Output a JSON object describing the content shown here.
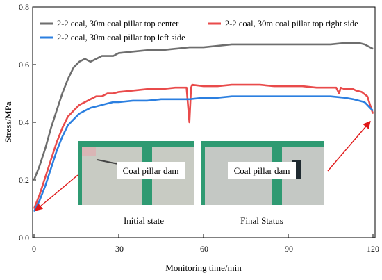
{
  "chart_data": {
    "type": "line",
    "xlabel": "Monitoring time/min",
    "ylabel": "Stress/MPa",
    "xlim": [
      0,
      120
    ],
    "ylim": [
      0.0,
      0.8
    ],
    "xticks": [
      "0",
      "30",
      "60",
      "90",
      "120"
    ],
    "yticks": [
      "0.0",
      "0.2",
      "0.4",
      "0.6",
      "0.8"
    ],
    "legend_position": "top",
    "series": [
      {
        "name": "2-2 coal, 30m coal pillar top center",
        "color": "#6e6e6e",
        "points": [
          [
            0,
            0.2
          ],
          [
            2,
            0.25
          ],
          [
            4,
            0.31
          ],
          [
            6,
            0.38
          ],
          [
            8,
            0.44
          ],
          [
            10,
            0.5
          ],
          [
            12,
            0.55
          ],
          [
            14,
            0.59
          ],
          [
            16,
            0.61
          ],
          [
            18,
            0.62
          ],
          [
            20,
            0.61
          ],
          [
            22,
            0.62
          ],
          [
            24,
            0.63
          ],
          [
            26,
            0.63
          ],
          [
            28,
            0.63
          ],
          [
            30,
            0.64
          ],
          [
            35,
            0.645
          ],
          [
            40,
            0.65
          ],
          [
            45,
            0.65
          ],
          [
            50,
            0.655
          ],
          [
            55,
            0.66
          ],
          [
            60,
            0.66
          ],
          [
            65,
            0.665
          ],
          [
            70,
            0.67
          ],
          [
            75,
            0.67
          ],
          [
            80,
            0.67
          ],
          [
            85,
            0.67
          ],
          [
            90,
            0.67
          ],
          [
            95,
            0.67
          ],
          [
            100,
            0.67
          ],
          [
            105,
            0.67
          ],
          [
            110,
            0.675
          ],
          [
            112,
            0.675
          ],
          [
            115,
            0.675
          ],
          [
            117,
            0.67
          ],
          [
            118,
            0.665
          ],
          [
            120,
            0.655
          ]
        ]
      },
      {
        "name": "2-2 coal, 30m coal pillar top right side",
        "color": "#e94b4b",
        "points": [
          [
            0,
            0.1
          ],
          [
            2,
            0.15
          ],
          [
            4,
            0.21
          ],
          [
            6,
            0.27
          ],
          [
            8,
            0.33
          ],
          [
            10,
            0.38
          ],
          [
            12,
            0.42
          ],
          [
            14,
            0.44
          ],
          [
            16,
            0.46
          ],
          [
            18,
            0.47
          ],
          [
            20,
            0.48
          ],
          [
            22,
            0.49
          ],
          [
            24,
            0.49
          ],
          [
            26,
            0.5
          ],
          [
            28,
            0.5
          ],
          [
            30,
            0.505
          ],
          [
            35,
            0.51
          ],
          [
            40,
            0.515
          ],
          [
            45,
            0.515
          ],
          [
            50,
            0.52
          ],
          [
            54,
            0.52
          ],
          [
            55,
            0.4
          ],
          [
            55.6,
            0.52
          ],
          [
            56,
            0.53
          ],
          [
            60,
            0.525
          ],
          [
            65,
            0.525
          ],
          [
            70,
            0.53
          ],
          [
            75,
            0.53
          ],
          [
            80,
            0.53
          ],
          [
            85,
            0.525
          ],
          [
            90,
            0.525
          ],
          [
            95,
            0.525
          ],
          [
            100,
            0.52
          ],
          [
            105,
            0.52
          ],
          [
            107,
            0.52
          ],
          [
            108,
            0.5
          ],
          [
            108.6,
            0.52
          ],
          [
            110,
            0.515
          ],
          [
            113,
            0.515
          ],
          [
            114,
            0.51
          ],
          [
            116,
            0.505
          ],
          [
            118,
            0.49
          ],
          [
            119,
            0.46
          ],
          [
            120,
            0.43
          ]
        ]
      },
      {
        "name": "2-2 coal, 30m coal pillar top left side",
        "color": "#2b7fe0",
        "points": [
          [
            0,
            0.09
          ],
          [
            2,
            0.13
          ],
          [
            4,
            0.18
          ],
          [
            6,
            0.24
          ],
          [
            8,
            0.3
          ],
          [
            10,
            0.35
          ],
          [
            12,
            0.39
          ],
          [
            14,
            0.41
          ],
          [
            16,
            0.43
          ],
          [
            18,
            0.44
          ],
          [
            20,
            0.45
          ],
          [
            22,
            0.455
          ],
          [
            24,
            0.46
          ],
          [
            26,
            0.465
          ],
          [
            28,
            0.47
          ],
          [
            30,
            0.47
          ],
          [
            35,
            0.475
          ],
          [
            40,
            0.475
          ],
          [
            45,
            0.48
          ],
          [
            50,
            0.48
          ],
          [
            55,
            0.48
          ],
          [
            60,
            0.485
          ],
          [
            65,
            0.485
          ],
          [
            70,
            0.49
          ],
          [
            75,
            0.49
          ],
          [
            80,
            0.49
          ],
          [
            85,
            0.49
          ],
          [
            90,
            0.49
          ],
          [
            95,
            0.49
          ],
          [
            100,
            0.49
          ],
          [
            105,
            0.49
          ],
          [
            110,
            0.485
          ],
          [
            113,
            0.48
          ],
          [
            115,
            0.475
          ],
          [
            117,
            0.47
          ],
          [
            118,
            0.46
          ],
          [
            119,
            0.45
          ],
          [
            120,
            0.44
          ]
        ]
      }
    ],
    "annotations": {
      "inset_initial": {
        "label": "Initial state",
        "inner_text": "Coal pillar dam"
      },
      "inset_final": {
        "label": "Final Status",
        "inner_text": "Coal pillar dam"
      }
    }
  },
  "colors": {
    "photo_green": "#2f9a72",
    "photo_wall": "#c9cbc4",
    "arrow": "#e01818"
  }
}
